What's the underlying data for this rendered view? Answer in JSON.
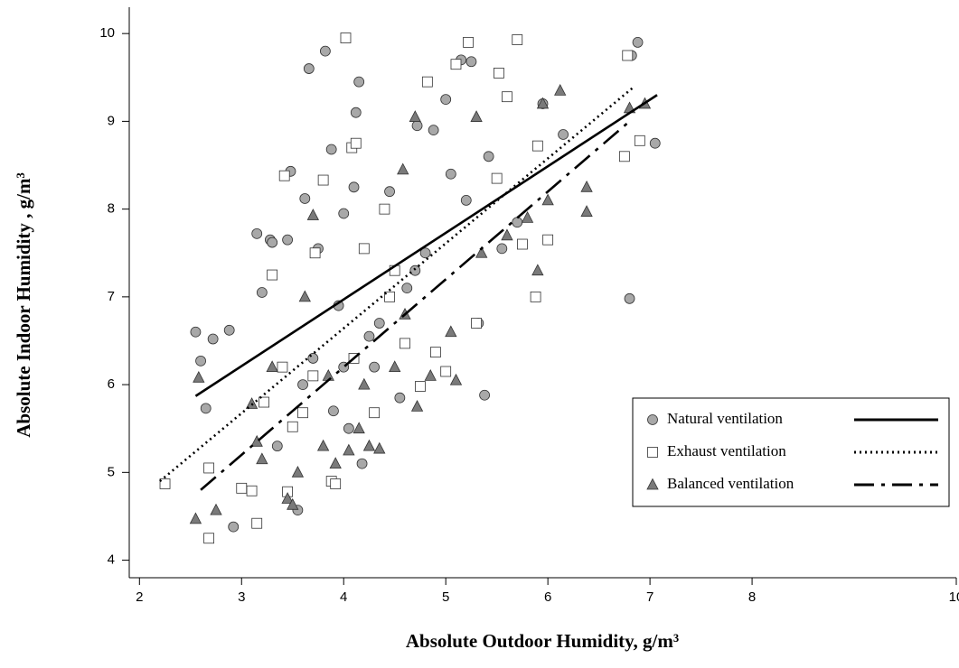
{
  "chart_data": {
    "type": "scatter",
    "xlabel": "Absolute Outdoor Humidity, g/m³",
    "ylabel": "Absolute Indoor Humidity , g/m³",
    "xlim": [
      1.9,
      10
    ],
    "ylim": [
      3.8,
      10.3
    ],
    "xticks": [
      2,
      3,
      4,
      5,
      6,
      7,
      8,
      10
    ],
    "yticks": [
      4,
      5,
      6,
      7,
      8,
      9,
      10
    ],
    "legend": "lower-right",
    "series": [
      {
        "name": "Natural ventilation",
        "color": "#a8a8a8",
        "marker": "circle",
        "dash": "none",
        "x": [
          2.55,
          2.6,
          2.65,
          2.72,
          2.88,
          2.92,
          3.15,
          3.2,
          3.28,
          3.3,
          3.35,
          3.45,
          3.48,
          3.55,
          3.62,
          3.66,
          3.7,
          3.75,
          3.82,
          3.88,
          3.95,
          4.0,
          4.05,
          4.1,
          4.12,
          4.15,
          4.18,
          4.25,
          4.35,
          4.45,
          4.55,
          4.62,
          4.72,
          4.8,
          4.88,
          5.0,
          5.05,
          5.15,
          5.2,
          5.25,
          5.32,
          5.38,
          5.42,
          5.55,
          5.7,
          5.95,
          6.15,
          6.8,
          6.82,
          6.88,
          7.05,
          4.0,
          3.9,
          4.3,
          3.6,
          4.7
        ],
        "y": [
          6.6,
          6.27,
          5.73,
          6.52,
          6.62,
          4.38,
          7.72,
          7.05,
          7.65,
          7.62,
          5.3,
          7.65,
          8.43,
          4.57,
          8.12,
          9.6,
          6.3,
          7.55,
          9.8,
          8.68,
          6.9,
          7.95,
          5.5,
          8.25,
          9.1,
          9.45,
          5.1,
          6.55,
          6.7,
          8.2,
          5.85,
          7.1,
          8.95,
          7.5,
          8.9,
          9.25,
          8.4,
          9.7,
          8.1,
          9.68,
          6.7,
          5.88,
          8.6,
          7.55,
          7.85,
          9.2,
          8.85,
          6.98,
          9.75,
          9.9,
          8.75,
          6.2,
          5.7,
          6.2,
          6.0,
          7.3
        ],
        "fit": {
          "x": [
            2.55,
            7.07
          ],
          "y": [
            5.87,
            9.3
          ]
        }
      },
      {
        "name": "Exhaust ventilation",
        "color": "#ffffff",
        "marker": "square",
        "dash": "2 4",
        "x": [
          2.25,
          2.68,
          2.68,
          3.0,
          3.1,
          3.15,
          3.22,
          3.3,
          3.42,
          3.45,
          3.5,
          3.6,
          3.72,
          3.8,
          3.88,
          3.92,
          4.02,
          4.08,
          4.12,
          4.2,
          4.3,
          4.4,
          4.5,
          4.6,
          4.75,
          4.82,
          4.9,
          5.0,
          5.1,
          5.22,
          5.3,
          5.5,
          5.52,
          5.6,
          5.7,
          5.75,
          5.88,
          5.9,
          6.0,
          6.78,
          6.75,
          6.9,
          4.1,
          3.7,
          4.45,
          3.4
        ],
        "y": [
          4.87,
          4.25,
          5.05,
          4.82,
          4.79,
          4.42,
          5.8,
          7.25,
          8.38,
          4.78,
          5.52,
          5.68,
          7.5,
          8.33,
          4.9,
          4.87,
          9.95,
          8.7,
          8.75,
          7.55,
          5.68,
          8.0,
          7.3,
          6.47,
          5.98,
          9.45,
          6.37,
          6.15,
          9.65,
          9.9,
          6.7,
          8.35,
          9.55,
          9.28,
          9.93,
          7.6,
          7.0,
          8.72,
          7.65,
          9.75,
          8.6,
          8.78,
          6.3,
          6.1,
          7.0,
          6.2
        ],
        "fit": {
          "x": [
            2.2,
            6.85
          ],
          "y": [
            4.9,
            9.4
          ]
        }
      },
      {
        "name": "Balanced ventilation",
        "color": "#7a7a7a",
        "marker": "triangle",
        "dash": "22 8 4 8",
        "x": [
          2.55,
          2.58,
          2.75,
          3.1,
          3.15,
          3.2,
          3.3,
          3.45,
          3.5,
          3.55,
          3.62,
          3.7,
          3.8,
          3.92,
          4.05,
          4.15,
          4.25,
          4.35,
          4.5,
          4.58,
          4.7,
          4.72,
          4.85,
          5.05,
          5.1,
          5.3,
          5.35,
          5.6,
          5.8,
          5.9,
          5.95,
          6.0,
          6.12,
          6.38,
          6.38,
          6.8,
          6.95,
          4.2,
          3.85,
          4.6
        ],
        "y": [
          4.47,
          6.08,
          4.57,
          5.78,
          5.35,
          5.15,
          6.2,
          4.7,
          4.63,
          5.0,
          7.0,
          7.93,
          5.3,
          5.1,
          5.25,
          5.5,
          5.3,
          5.27,
          6.2,
          8.45,
          9.05,
          5.75,
          6.1,
          6.6,
          6.05,
          9.05,
          7.5,
          7.7,
          7.9,
          7.3,
          9.2,
          8.1,
          9.35,
          8.25,
          7.97,
          9.15,
          9.2,
          6.0,
          6.1,
          6.8
        ],
        "fit": {
          "x": [
            2.6,
            6.8
          ],
          "y": [
            4.8,
            9.0
          ]
        }
      }
    ]
  }
}
